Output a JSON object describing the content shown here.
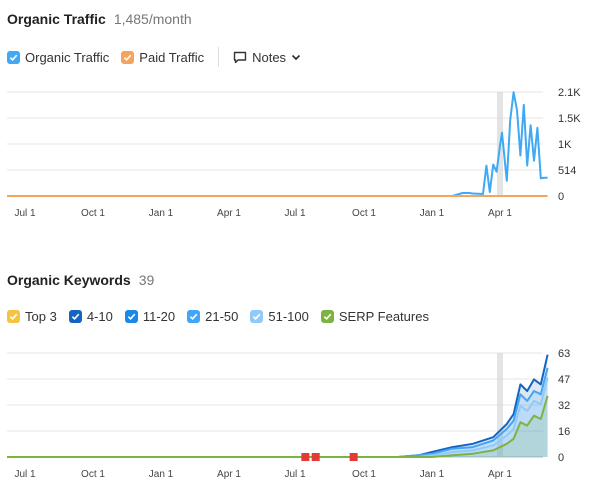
{
  "traffic": {
    "title": "Organic Traffic",
    "subtitle": "1,485/month",
    "legend": [
      {
        "label": "Organic Traffic",
        "color": "#3fa9f5"
      },
      {
        "label": "Paid Traffic",
        "color": "#f7a35c"
      }
    ],
    "notes_label": "Notes"
  },
  "keywords": {
    "title": "Organic Keywords",
    "subtitle": "39",
    "legend": [
      {
        "label": "Top 3",
        "color": "#f5c242"
      },
      {
        "label": "4-10",
        "color": "#1565c0"
      },
      {
        "label": "11-20",
        "color": "#1e88e5"
      },
      {
        "label": "21-50",
        "color": "#42a5f5"
      },
      {
        "label": "51-100",
        "color": "#90caf9"
      },
      {
        "label": "SERP Features",
        "color": "#7cb342"
      }
    ]
  },
  "chart_data": [
    {
      "type": "line",
      "title": "Organic Traffic",
      "x_ticks": [
        "Jul 1",
        "Oct 1",
        "Jan 1",
        "Apr 1",
        "Jul 1",
        "Oct 1",
        "Jan 1",
        "Apr 1"
      ],
      "y_ticks": [
        "2.1K",
        "1.5K",
        "1K",
        "514",
        "0"
      ],
      "ylim": [
        0,
        2056
      ],
      "grid": true,
      "series": [
        {
          "name": "Organic Traffic",
          "color": "#3fa9f5",
          "x": [
            0,
            6.3,
            6.4,
            6.45,
            6.55,
            6.6,
            6.75,
            6.8,
            6.85,
            6.9,
            6.95,
            7.0,
            7.03,
            7.1,
            7.15,
            7.2,
            7.25,
            7.3,
            7.35,
            7.4,
            7.45,
            7.5,
            7.55,
            7.6,
            7.65,
            7.7
          ],
          "y": [
            0,
            0,
            40,
            60,
            60,
            50,
            40,
            600,
            80,
            620,
            480,
            1000,
            1250,
            300,
            1500,
            2050,
            1700,
            800,
            1800,
            600,
            1400,
            700,
            1350,
            350,
            360,
            360
          ]
        },
        {
          "name": "Paid Traffic",
          "color": "#f7a35c",
          "x": [
            0,
            6.5,
            6.65,
            7.7
          ],
          "y": [
            0,
            0,
            0,
            0
          ]
        }
      ]
    },
    {
      "type": "area",
      "title": "Organic Keywords",
      "x_ticks": [
        "Jul 1",
        "Oct 1",
        "Jan 1",
        "Apr 1",
        "Jul 1",
        "Oct 1",
        "Jan 1",
        "Apr 1"
      ],
      "y_ticks": [
        "63",
        "47",
        "32",
        "16",
        "0"
      ],
      "ylim": [
        0,
        63
      ],
      "grid": true,
      "series": [
        {
          "name": "4-10",
          "color": "#1565c0",
          "x": [
            0,
            5.5,
            5.8,
            6.0,
            6.3,
            6.6,
            6.9,
            7.1,
            7.2,
            7.3,
            7.4,
            7.5,
            7.6,
            7.7
          ],
          "y": [
            0,
            0,
            1,
            3,
            6,
            8,
            12,
            20,
            26,
            44,
            40,
            47,
            44,
            62
          ]
        },
        {
          "name": "21-50",
          "color": "#42a5f5",
          "x": [
            0,
            5.5,
            5.8,
            6.0,
            6.3,
            6.6,
            6.9,
            7.1,
            7.2,
            7.3,
            7.4,
            7.5,
            7.6,
            7.7
          ],
          "y": [
            0,
            0,
            1,
            2,
            5,
            6,
            10,
            17,
            22,
            38,
            34,
            40,
            38,
            54
          ]
        },
        {
          "name": "51-100",
          "color": "#90caf9",
          "x": [
            0,
            5.5,
            5.8,
            6.0,
            6.3,
            6.6,
            6.9,
            7.1,
            7.2,
            7.3,
            7.4,
            7.5,
            7.6,
            7.7
          ],
          "y": [
            0,
            0,
            0,
            1,
            3,
            4,
            7,
            13,
            17,
            31,
            28,
            34,
            32,
            48
          ]
        },
        {
          "name": "SERP Features",
          "color": "#7cb342",
          "x": [
            0,
            6.0,
            6.3,
            6.6,
            6.9,
            7.1,
            7.2,
            7.3,
            7.4,
            7.5,
            7.6,
            7.7
          ],
          "y": [
            0,
            0,
            1,
            2,
            4,
            8,
            11,
            21,
            19,
            25,
            23,
            37
          ]
        }
      ],
      "flags": [
        {
          "x": 4.15,
          "color": "#e53935"
        },
        {
          "x": 4.3,
          "color": "#e53935"
        },
        {
          "x": 4.85,
          "color": "#e53935"
        }
      ]
    }
  ]
}
